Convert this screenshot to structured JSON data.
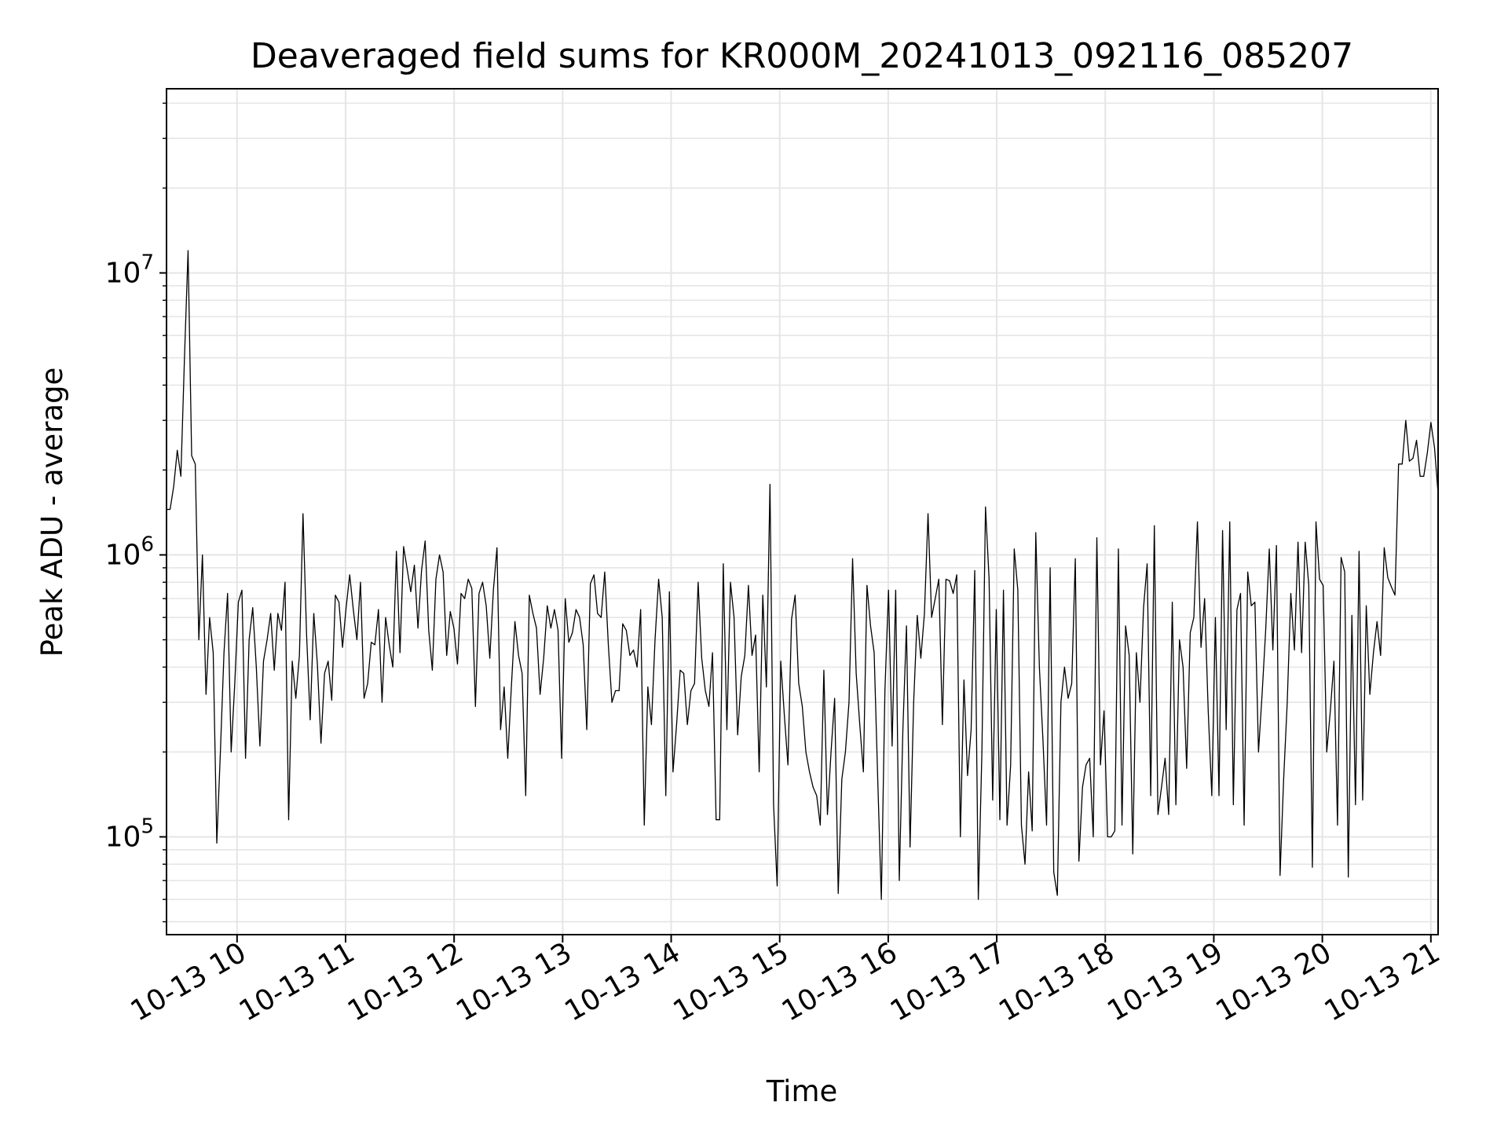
{
  "chart_data": {
    "type": "line",
    "title": "Deaveraged field sums for KR000M_20241013_092116_085207",
    "xlabel": "Time",
    "ylabel": "Peak ADU - average",
    "yscale": "log",
    "ylim": [
      45000,
      45000000
    ],
    "xlim": [
      "2024-10-13T09:21",
      "2024-10-13T21:04"
    ],
    "grid": true,
    "line_color": "#000000",
    "grid_color": "#e5e5e5",
    "x_ticks": [
      "10-13 10",
      "10-13 11",
      "10-13 12",
      "10-13 13",
      "10-13 14",
      "10-13 15",
      "10-13 16",
      "10-13 17",
      "10-13 18",
      "10-13 19",
      "10-13 20",
      "10-13 21"
    ],
    "y_ticks": [
      {
        "value": 100000,
        "base": "10",
        "exp": "5"
      },
      {
        "value": 1000000,
        "base": "10",
        "exp": "6"
      },
      {
        "value": 10000000,
        "base": "10",
        "exp": "7"
      }
    ],
    "series": [
      {
        "x_start": "2024-10-13T09:21",
        "x_end": "2024-10-13T21:04",
        "values": [
          1450000,
          1450000,
          1750000,
          2350000,
          1900000,
          5000000,
          12000000,
          2250000,
          2100000,
          500000,
          1000000,
          320000,
          600000,
          450000,
          95000,
          200000,
          450000,
          730000,
          200000,
          350000,
          680000,
          750000,
          190000,
          500000,
          650000,
          400000,
          210000,
          420000,
          500000,
          620000,
          390000,
          620000,
          540000,
          800000,
          115000,
          420000,
          310000,
          440000,
          1400000,
          520000,
          260000,
          620000,
          410000,
          215000,
          380000,
          420000,
          305000,
          720000,
          680000,
          470000,
          650000,
          850000,
          640000,
          500000,
          800000,
          310000,
          350000,
          490000,
          480000,
          640000,
          300000,
          600000,
          480000,
          400000,
          1030000,
          450000,
          1070000,
          890000,
          740000,
          920000,
          550000,
          880000,
          1120000,
          540000,
          390000,
          820000,
          1000000,
          870000,
          440000,
          630000,
          550000,
          410000,
          730000,
          700000,
          820000,
          760000,
          290000,
          730000,
          800000,
          660000,
          430000,
          750000,
          1060000,
          240000,
          340000,
          190000,
          340000,
          580000,
          440000,
          380000,
          140000,
          720000,
          620000,
          550000,
          320000,
          430000,
          660000,
          550000,
          640000,
          540000,
          190000,
          700000,
          490000,
          530000,
          640000,
          600000,
          480000,
          240000,
          790000,
          850000,
          620000,
          600000,
          870000,
          480000,
          300000,
          330000,
          330000,
          570000,
          540000,
          440000,
          460000,
          400000,
          640000,
          110000,
          340000,
          250000,
          500000,
          820000,
          600000,
          140000,
          740000,
          170000,
          250000,
          390000,
          380000,
          250000,
          330000,
          350000,
          800000,
          430000,
          330000,
          290000,
          450000,
          115000,
          115000,
          930000,
          240000,
          800000,
          600000,
          230000,
          370000,
          440000,
          780000,
          440000,
          520000,
          170000,
          720000,
          340000,
          1780000,
          130000,
          67000,
          420000,
          270000,
          180000,
          590000,
          720000,
          350000,
          290000,
          200000,
          170000,
          150000,
          140000,
          110000,
          390000,
          120000,
          200000,
          310000,
          63000,
          160000,
          200000,
          300000,
          970000,
          380000,
          250000,
          170000,
          780000,
          560000,
          450000,
          160000,
          60000,
          330000,
          750000,
          210000,
          750000,
          70000,
          240000,
          560000,
          92000,
          300000,
          610000,
          430000,
          620000,
          1400000,
          600000,
          700000,
          820000,
          250000,
          820000,
          810000,
          730000,
          850000,
          100000,
          360000,
          165000,
          240000,
          880000,
          60000,
          200000,
          1480000,
          820000,
          135000,
          640000,
          115000,
          750000,
          110000,
          180000,
          1050000,
          750000,
          110000,
          80000,
          170000,
          105000,
          1200000,
          400000,
          220000,
          110000,
          900000,
          75000,
          62000,
          300000,
          400000,
          310000,
          350000,
          970000,
          82000,
          150000,
          180000,
          190000,
          100000,
          1150000,
          180000,
          280000,
          100000,
          100000,
          105000,
          1050000,
          110000,
          560000,
          440000,
          87000,
          450000,
          300000,
          650000,
          930000,
          140000,
          1270000,
          120000,
          150000,
          190000,
          120000,
          680000,
          130000,
          500000,
          400000,
          175000,
          530000,
          600000,
          1310000,
          470000,
          700000,
          280000,
          140000,
          600000,
          140000,
          1220000,
          240000,
          1310000,
          130000,
          640000,
          730000,
          110000,
          870000,
          660000,
          680000,
          200000,
          320000,
          540000,
          1050000,
          460000,
          1080000,
          73000,
          160000,
          300000,
          730000,
          460000,
          1110000,
          450000,
          1110000,
          780000,
          78000,
          1310000,
          820000,
          780000,
          200000,
          280000,
          420000,
          110000,
          980000,
          870000,
          72000,
          610000,
          130000,
          1030000,
          135000,
          660000,
          320000,
          450000,
          580000,
          440000,
          1060000,
          830000,
          770000,
          720000,
          2100000,
          2100000,
          3000000,
          2150000,
          2200000,
          2550000,
          1900000,
          1900000,
          2300000,
          2950000,
          2400000,
          1650000
        ]
      }
    ]
  }
}
